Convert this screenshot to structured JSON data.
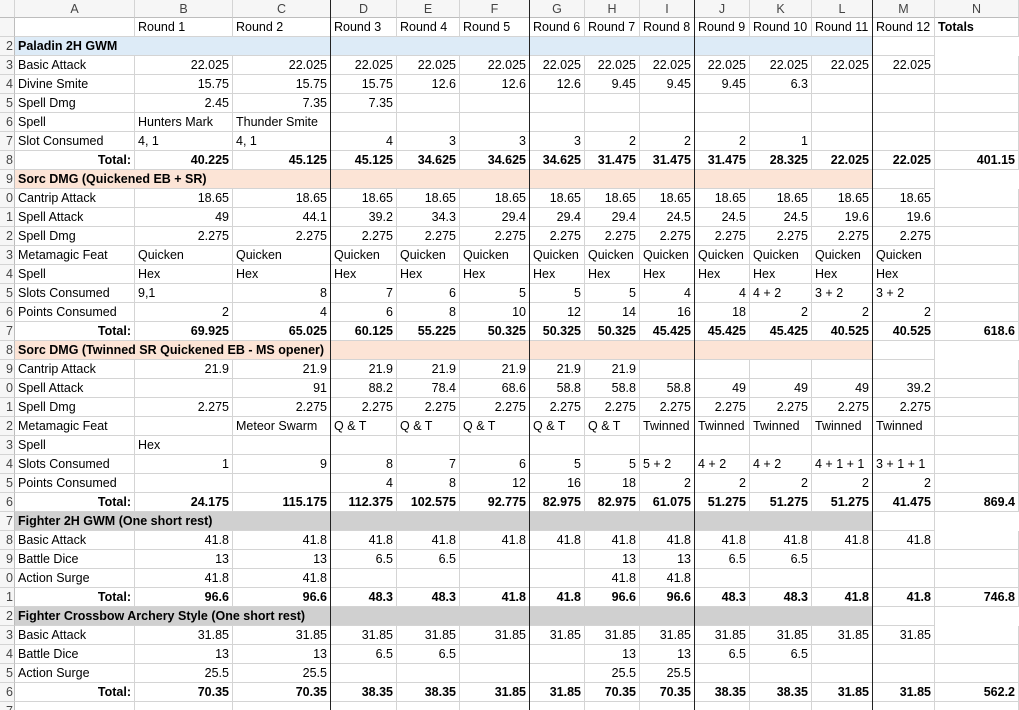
{
  "table": {
    "columns": [
      "A",
      "B",
      "C",
      "D",
      "E",
      "F",
      "G",
      "H",
      "I",
      "J",
      "K",
      "L",
      "M",
      "N"
    ],
    "rows": [
      {
        "cells": [
          null,
          "Round 1",
          "Round 2",
          "Round 3",
          "Round 4",
          "Round 5",
          "Round 6",
          "Round 7",
          "Round 8",
          "Round 9",
          "Round 10",
          "Round 11",
          "Round 12",
          "Totals"
        ],
        "bold_last": true
      },
      {
        "num": "2",
        "section": "Paladin 2H GWM",
        "fill": "#ddebf7"
      },
      {
        "num": "3",
        "cells": [
          "Basic Attack",
          22.025,
          22.025,
          22.025,
          22.025,
          22.025,
          22.025,
          22.025,
          22.025,
          22.025,
          22.025,
          22.025,
          22.025,
          null
        ]
      },
      {
        "num": "4",
        "cells": [
          "Divine Smite",
          15.75,
          15.75,
          15.75,
          12.6,
          12.6,
          12.6,
          9.45,
          9.45,
          9.45,
          6.3,
          null,
          null,
          null
        ]
      },
      {
        "num": "5",
        "cells": [
          "Spell Dmg",
          2.45,
          7.35,
          7.35,
          null,
          null,
          null,
          null,
          null,
          null,
          null,
          null,
          null,
          null
        ]
      },
      {
        "num": "6",
        "cells": [
          "Spell",
          "Hunters Mark",
          "Thunder Smite",
          null,
          null,
          null,
          null,
          null,
          null,
          null,
          null,
          null,
          null,
          null
        ]
      },
      {
        "num": "7",
        "cells": [
          "Slot Consumed",
          "4, 1",
          "4, 1",
          4,
          3,
          3,
          3,
          2,
          2,
          2,
          1,
          null,
          null,
          null
        ]
      },
      {
        "num": "8",
        "bold": true,
        "cells": [
          "Total:",
          40.225,
          45.125,
          45.125,
          34.625,
          34.625,
          34.625,
          31.475,
          31.475,
          31.475,
          28.325,
          22.025,
          22.025,
          401.15
        ]
      },
      {
        "num": "9",
        "section": "Sorc DMG (Quickened EB + SR)",
        "fill": "#fce4d6"
      },
      {
        "num": "0",
        "cells": [
          "Cantrip Attack",
          18.65,
          18.65,
          18.65,
          18.65,
          18.65,
          18.65,
          18.65,
          18.65,
          18.65,
          18.65,
          18.65,
          18.65,
          null
        ]
      },
      {
        "num": "1",
        "cells": [
          "Spell Attack",
          49,
          44.1,
          39.2,
          34.3,
          29.4,
          29.4,
          29.4,
          24.5,
          24.5,
          24.5,
          19.6,
          19.6,
          null
        ]
      },
      {
        "num": "2",
        "cells": [
          "Spell Dmg",
          2.275,
          2.275,
          2.275,
          2.275,
          2.275,
          2.275,
          2.275,
          2.275,
          2.275,
          2.275,
          2.275,
          2.275,
          null
        ]
      },
      {
        "num": "3",
        "cells": [
          "Metamagic Feat",
          "Quicken",
          "Quicken",
          "Quicken",
          "Quicken",
          "Quicken",
          "Quicken",
          "Quicken",
          "Quicken",
          "Quicken",
          "Quicken",
          "Quicken",
          "Quicken",
          null
        ]
      },
      {
        "num": "4",
        "cells": [
          "Spell",
          "Hex",
          "Hex",
          "Hex",
          "Hex",
          "Hex",
          "Hex",
          "Hex",
          "Hex",
          "Hex",
          "Hex",
          "Hex",
          "Hex",
          null
        ]
      },
      {
        "num": "5",
        "cells": [
          "Slots Consumed",
          "9,1",
          8,
          7,
          6,
          5,
          5,
          5,
          4,
          4,
          "4 + 2",
          "3 + 2",
          "3 + 2",
          null
        ]
      },
      {
        "num": "6",
        "cells": [
          "Points Consumed",
          2,
          4,
          6,
          8,
          10,
          12,
          14,
          16,
          18,
          2,
          2,
          2,
          null
        ]
      },
      {
        "num": "7",
        "bold": true,
        "cells": [
          "Total:",
          69.925,
          65.025,
          60.125,
          55.225,
          50.325,
          50.325,
          50.325,
          45.425,
          45.425,
          45.425,
          40.525,
          40.525,
          618.6
        ]
      },
      {
        "num": "8",
        "section": "Sorc DMG (Twinned SR Quickened EB - MS opener)",
        "fill": "#fce4d6"
      },
      {
        "num": "9",
        "cells": [
          "Cantrip Attack",
          21.9,
          21.9,
          21.9,
          21.9,
          21.9,
          21.9,
          21.9,
          null,
          null,
          null,
          null,
          null,
          null
        ]
      },
      {
        "num": "0",
        "cells": [
          "Spell Attack",
          null,
          91,
          88.2,
          78.4,
          68.6,
          58.8,
          58.8,
          58.8,
          49,
          49,
          49,
          39.2,
          null
        ]
      },
      {
        "num": "1",
        "cells": [
          "Spell Dmg",
          2.275,
          2.275,
          2.275,
          2.275,
          2.275,
          2.275,
          2.275,
          2.275,
          2.275,
          2.275,
          2.275,
          2.275,
          null
        ]
      },
      {
        "num": "2",
        "cells": [
          "Metamagic Feat",
          null,
          "Meteor Swarm",
          "Q & T",
          "Q & T",
          "Q & T",
          "Q & T",
          "Q & T",
          "Twinned",
          "Twinned",
          "Twinned",
          "Twinned",
          "Twinned",
          null
        ]
      },
      {
        "num": "3",
        "cells": [
          "Spell",
          "Hex",
          null,
          null,
          null,
          null,
          null,
          null,
          null,
          null,
          null,
          null,
          null,
          null
        ]
      },
      {
        "num": "4",
        "cells": [
          "Slots Consumed",
          1,
          9,
          8,
          7,
          6,
          5,
          5,
          "5 + 2",
          "4 + 2",
          "4 + 2",
          "4 + 1 + 1",
          "3 + 1 + 1",
          null
        ]
      },
      {
        "num": "5",
        "cells": [
          "Points Consumed",
          null,
          null,
          4,
          8,
          12,
          16,
          18,
          2,
          2,
          2,
          2,
          2,
          null
        ]
      },
      {
        "num": "6",
        "bold": true,
        "cells": [
          "Total:",
          24.175,
          115.175,
          112.375,
          102.575,
          92.775,
          82.975,
          82.975,
          61.075,
          51.275,
          51.275,
          51.275,
          41.475,
          869.4
        ]
      },
      {
        "num": "7",
        "section": "Fighter 2H GWM (One short rest)",
        "fill": "#d0d0d0"
      },
      {
        "num": "8",
        "cells": [
          "Basic Attack",
          41.8,
          41.8,
          41.8,
          41.8,
          41.8,
          41.8,
          41.8,
          41.8,
          41.8,
          41.8,
          41.8,
          41.8,
          null
        ]
      },
      {
        "num": "9",
        "cells": [
          "Battle Dice",
          13,
          13,
          6.5,
          6.5,
          null,
          null,
          13,
          13,
          6.5,
          6.5,
          null,
          null,
          null
        ]
      },
      {
        "num": "0",
        "cells": [
          "Action Surge",
          41.8,
          41.8,
          null,
          null,
          null,
          null,
          41.8,
          41.8,
          null,
          null,
          null,
          null,
          null
        ]
      },
      {
        "num": "1",
        "bold": true,
        "cells": [
          "Total:",
          96.6,
          96.6,
          48.3,
          48.3,
          41.8,
          41.8,
          96.6,
          96.6,
          48.3,
          48.3,
          41.8,
          41.8,
          746.8
        ]
      },
      {
        "num": "2",
        "section": "Fighter Crossbow Archery Style (One short rest)",
        "fill": "#d0d0d0"
      },
      {
        "num": "3",
        "cells": [
          "Basic Attack",
          31.85,
          31.85,
          31.85,
          31.85,
          31.85,
          31.85,
          31.85,
          31.85,
          31.85,
          31.85,
          31.85,
          31.85,
          null
        ]
      },
      {
        "num": "4",
        "cells": [
          "Battle Dice",
          13,
          13,
          6.5,
          6.5,
          null,
          null,
          13,
          13,
          6.5,
          6.5,
          null,
          null,
          null
        ]
      },
      {
        "num": "5",
        "cells": [
          "Action Surge",
          25.5,
          25.5,
          null,
          null,
          null,
          null,
          25.5,
          25.5,
          null,
          null,
          null,
          null,
          null
        ]
      },
      {
        "num": "6",
        "bold": true,
        "cells": [
          "Total:",
          70.35,
          70.35,
          38.35,
          38.35,
          31.85,
          31.85,
          70.35,
          70.35,
          38.35,
          38.35,
          31.85,
          31.85,
          562.2
        ]
      },
      {
        "num": "7"
      }
    ]
  }
}
